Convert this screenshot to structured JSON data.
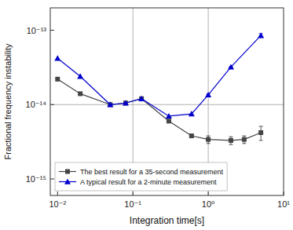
{
  "chart_data": {
    "type": "line",
    "title": "",
    "xlabel": "Integration time[s]",
    "ylabel": "Fractional frequency instability",
    "log": true,
    "xlim": [
      0.008,
      10
    ],
    "ylim": [
      6e-16,
      2e-13
    ],
    "xticks": [
      {
        "value": 0.01,
        "label": "10⁻²"
      },
      {
        "value": 0.1,
        "label": "10⁻¹"
      },
      {
        "value": 1,
        "label": "10⁰"
      },
      {
        "value": 10,
        "label": "10¹"
      }
    ],
    "yticks": [
      {
        "value": 1e-15,
        "label": "10⁻¹⁵"
      },
      {
        "value": 1e-14,
        "label": "10⁻¹⁴"
      },
      {
        "value": 1e-13,
        "label": "10⁻¹³"
      }
    ],
    "reference_lines": {
      "x": [
        0.1,
        1.0
      ],
      "y": [
        1e-14
      ]
    },
    "legend": "lower left",
    "series": [
      {
        "name": "The best result for a 35-second measurement",
        "color": "#444444",
        "marker": "square",
        "x": [
          0.01,
          0.02,
          0.05,
          0.08,
          0.13,
          0.3,
          0.6,
          1.0,
          2.0,
          3.0,
          5.0
        ],
        "values": [
          2.2e-14,
          1.4e-14,
          1e-14,
          1.05e-14,
          1.2e-14,
          6e-15,
          3.8e-15,
          3.4e-15,
          3.3e-15,
          3.4e-15,
          4.2e-15
        ],
        "errors": [
          0,
          0,
          0,
          0,
          0,
          0,
          0,
          4e-16,
          4e-16,
          4e-16,
          9e-16
        ]
      },
      {
        "name": "A typical result for a 2-minute measurement",
        "color": "#0000cc",
        "marker": "triangle",
        "x": [
          0.01,
          0.02,
          0.05,
          0.08,
          0.13,
          0.3,
          0.6,
          1.0,
          2.0,
          5.0
        ],
        "values": [
          4.2e-14,
          2.4e-14,
          1e-14,
          1.05e-14,
          1.2e-14,
          7e-15,
          7.5e-15,
          1.35e-14,
          3.2e-14,
          8.5e-14
        ],
        "errors": [
          0,
          0,
          0,
          0,
          0,
          0,
          0,
          4e-16,
          5e-16,
          5e-15
        ]
      }
    ]
  }
}
